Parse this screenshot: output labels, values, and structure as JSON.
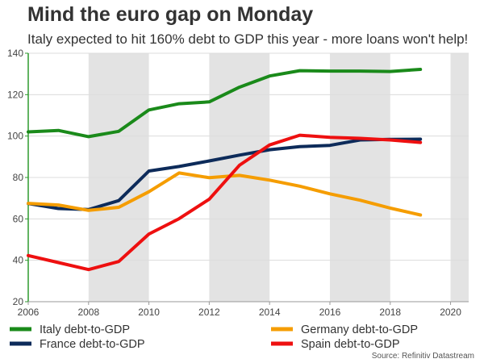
{
  "title": "Mind the euro gap on Monday",
  "subtitle": "Italy expected to hit 160% debt to GDP this year - more loans won't help!",
  "source": "Source: Refinitiv Datastream",
  "chart_data": {
    "type": "line",
    "title": "Mind the euro gap on Monday",
    "subtitle": "Italy expected to hit 160% debt to GDP this year - more loans won't help!",
    "xlabel": "",
    "ylabel": "",
    "xlim": [
      2006,
      2020.6
    ],
    "ylim": [
      20,
      140
    ],
    "xticks": [
      2006,
      2008,
      2010,
      2012,
      2014,
      2016,
      2018,
      2020
    ],
    "yticks": [
      20,
      40,
      60,
      80,
      100,
      120,
      140
    ],
    "shaded_periods": [
      [
        2008,
        2010
      ],
      [
        2012,
        2014
      ],
      [
        2016,
        2018
      ],
      [
        2020,
        2020.6
      ]
    ],
    "legend_position": "bottom",
    "series": [
      {
        "name": "Italy debt-to-GDP",
        "color": "#1a8a1a",
        "x": [
          2006,
          2007,
          2008,
          2009,
          2010,
          2011,
          2012,
          2013,
          2014,
          2015,
          2016,
          2017,
          2018,
          2019
        ],
        "values": [
          102,
          102.7,
          99.7,
          102.3,
          112.6,
          115.6,
          116.5,
          123.6,
          129.0,
          131.6,
          131.4,
          131.4,
          131.2,
          132.2
        ]
      },
      {
        "name": "France debt-to-GDP",
        "color": "#0d2b5a",
        "x": [
          2006,
          2007,
          2008,
          2009,
          2010,
          2011,
          2012,
          2013,
          2014,
          2015,
          2016,
          2017,
          2018,
          2019
        ],
        "values": [
          67.4,
          65.0,
          64.5,
          68.8,
          83.1,
          85.3,
          88.0,
          90.8,
          93.4,
          94.9,
          95.5,
          98.1,
          98.4,
          98.5
        ]
      },
      {
        "name": "Germany debt-to-GDP",
        "color": "#f59d00",
        "x": [
          2006,
          2007,
          2008,
          2009,
          2010,
          2011,
          2012,
          2013,
          2014,
          2015,
          2016,
          2017,
          2018,
          2019
        ],
        "values": [
          67.5,
          66.7,
          64.1,
          65.6,
          73.1,
          82.2,
          79.9,
          81.0,
          78.7,
          75.8,
          72.1,
          69.0,
          65.2,
          61.9
        ]
      },
      {
        "name": "Spain debt-to-GDP",
        "color": "#ee1010",
        "x": [
          2006,
          2007,
          2008,
          2009,
          2010,
          2011,
          2012,
          2013,
          2014,
          2015,
          2016,
          2017,
          2018,
          2019
        ],
        "values": [
          42.3,
          38.9,
          35.5,
          39.4,
          52.7,
          60.1,
          69.5,
          85.9,
          95.7,
          100.4,
          99.4,
          98.9,
          98.1,
          96.9
        ]
      }
    ]
  }
}
